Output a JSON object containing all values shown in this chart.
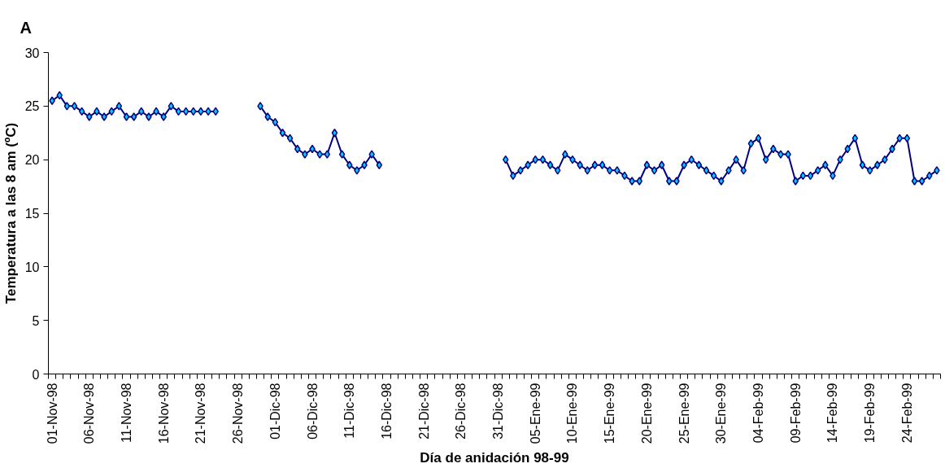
{
  "chart_data": {
    "type": "line",
    "title": "A",
    "xlabel": "Día de anidación 98-99",
    "ylabel": "Temperatura a las 8 am (ºC)",
    "categories": [
      "01-Nov-98",
      null,
      null,
      null,
      null,
      "06-Nov-98",
      null,
      null,
      null,
      null,
      "11-Nov-98",
      null,
      null,
      null,
      null,
      "16-Nov-98",
      null,
      null,
      null,
      null,
      "21-Nov-98",
      null,
      null,
      null,
      null,
      "26-Nov-98",
      null,
      null,
      null,
      null,
      "01-Dic-98",
      null,
      null,
      null,
      null,
      "06-Dic-98",
      null,
      null,
      null,
      null,
      "11-Dic-98",
      null,
      null,
      null,
      null,
      "16-Dic-98",
      null,
      null,
      null,
      null,
      "21-Dic-98",
      null,
      null,
      null,
      null,
      "26-Dic-98",
      null,
      null,
      null,
      null,
      "31-Dic-98",
      null,
      null,
      null,
      null,
      "05-Ene-99",
      null,
      null,
      null,
      null,
      "10-Ene-99",
      null,
      null,
      null,
      null,
      "15-Ene-99",
      null,
      null,
      null,
      null,
      "20-Ene-99",
      null,
      null,
      null,
      null,
      "25-Ene-99",
      null,
      null,
      null,
      null,
      "30-Ene-99",
      null,
      null,
      null,
      null,
      "04-Feb-99",
      null,
      null,
      null,
      null,
      "09-Feb-99",
      null,
      null,
      null,
      null,
      "14-Feb-99",
      null,
      null,
      null,
      null,
      "19-Feb-99",
      null,
      null,
      null,
      null,
      "24-Feb-99",
      null,
      null,
      null,
      null
    ],
    "series": [
      {
        "color": "#000080",
        "values": [
          25.5,
          26,
          25,
          25,
          24.5,
          24,
          24.5,
          24,
          24.5,
          25,
          24,
          24,
          24.5,
          24,
          24.5,
          24,
          25,
          24.5,
          24.5,
          24.5,
          24.5,
          24.5,
          24.5,
          null,
          null,
          null,
          null,
          null,
          25,
          24,
          23.5,
          22.5,
          22,
          21,
          20.5,
          21,
          20.5,
          20.5,
          22.5,
          20.5,
          19.5,
          19,
          19.5,
          20.5,
          19.5,
          null,
          null,
          null,
          null,
          null,
          null,
          null,
          null,
          null,
          null,
          null,
          null,
          null,
          null,
          null,
          null,
          20,
          18.5,
          19,
          19.5,
          20,
          20,
          19.5,
          19,
          20.5,
          20,
          19.5,
          19,
          19.5,
          19.5,
          19,
          19,
          18.5,
          18,
          18,
          19.5,
          19,
          19.5,
          18,
          18,
          19.5,
          20,
          19.5,
          19,
          18.5,
          18,
          19,
          20,
          19,
          21.5,
          22,
          20,
          21,
          20.5,
          20.5,
          18,
          18.5,
          18.5,
          19,
          19.5,
          18.5,
          20,
          21,
          22,
          19.5,
          19,
          19.5,
          20,
          21,
          22,
          22,
          18,
          18,
          18.5,
          19
        ]
      }
    ],
    "ylim": [
      0,
      30
    ],
    "yticks": [
      0,
      5,
      10,
      15,
      20,
      25,
      30
    ],
    "grid": false,
    "marker": "diamond",
    "line_style": "solid"
  }
}
